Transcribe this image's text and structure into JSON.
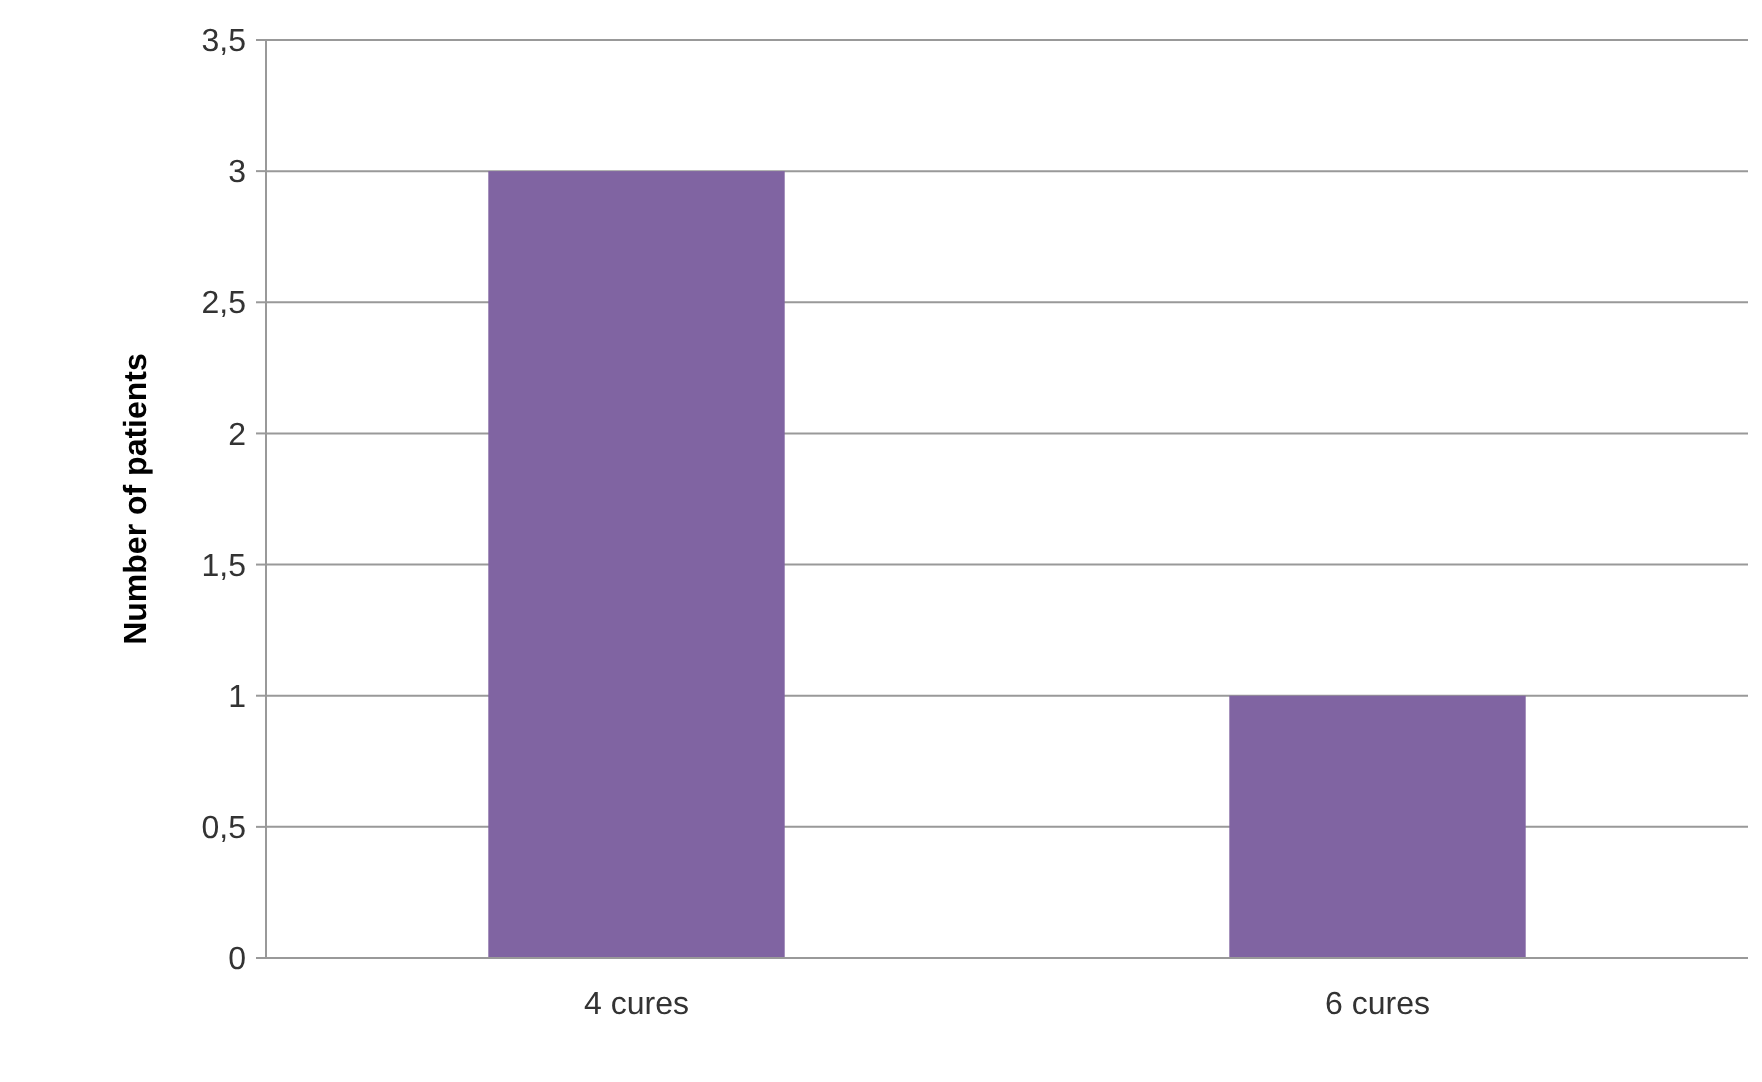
{
  "chart_data": {
    "type": "bar",
    "ylabel": "Number of patients",
    "categories": [
      "4 cures",
      "6 cures"
    ],
    "values": [
      3,
      1
    ],
    "color": "#8064a2",
    "ylim": [
      0,
      3.5
    ],
    "yticks": [
      0,
      {
        "value": 0.5,
        "label": "0,5"
      },
      1,
      {
        "value": 1.5,
        "label": "1,5"
      },
      2,
      {
        "value": 2.5,
        "label": "2,5"
      },
      3,
      {
        "value": 3.5,
        "label": "3,5"
      }
    ],
    "grid": "y"
  }
}
